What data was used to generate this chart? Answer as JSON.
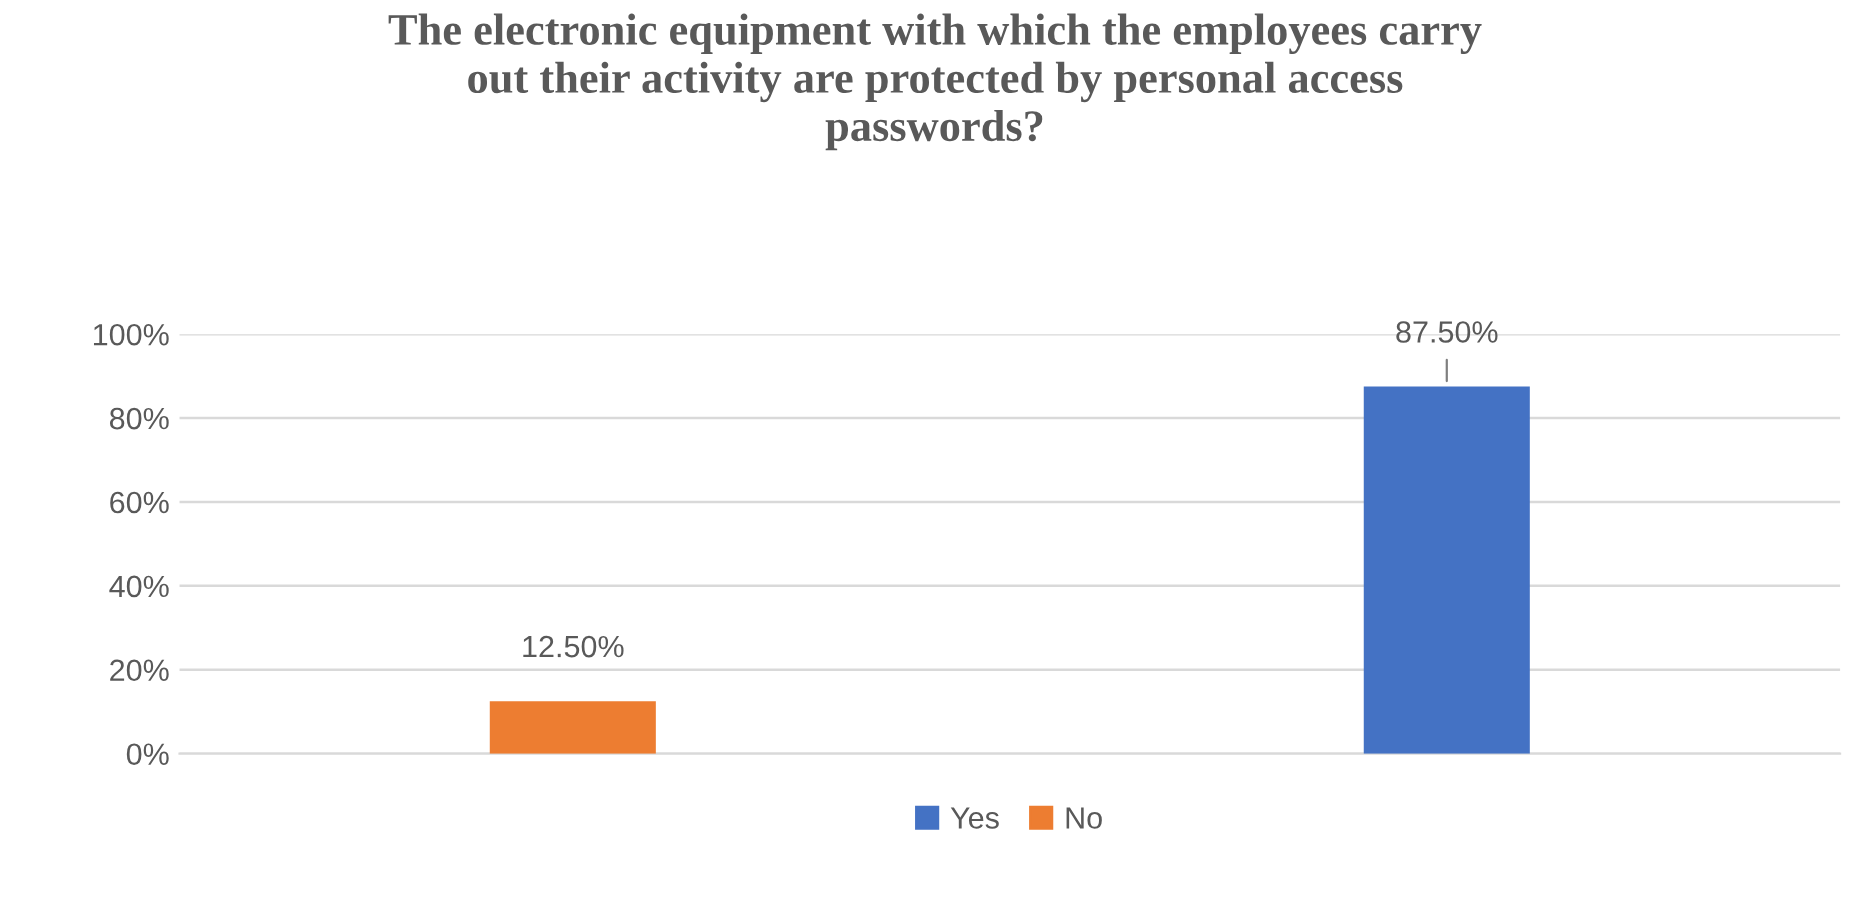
{
  "chart_data": {
    "type": "bar",
    "title": "The electronic equipment with which the employees carry\nout their activity are protected by personal access\npasswords?",
    "categories": [
      null,
      null
    ],
    "stacked": true,
    "series": [
      {
        "name": "Yes",
        "color": "#4472c4",
        "values": [
          null,
          87.5
        ],
        "value_labels": [
          null,
          "87.50%"
        ]
      },
      {
        "name": "No",
        "color": "#ed7d31",
        "values": [
          12.5,
          null
        ],
        "value_labels": [
          "12.50%",
          null
        ]
      }
    ],
    "ylim": [
      0,
      100
    ],
    "yticks": [
      {
        "value": 0,
        "label": "0%"
      },
      {
        "value": 20,
        "label": "20%"
      },
      {
        "value": 40,
        "label": "40%"
      },
      {
        "value": 60,
        "label": "60%"
      },
      {
        "value": 80,
        "label": "80%"
      },
      {
        "value": 100,
        "label": "100%"
      }
    ],
    "grid": "y",
    "legend": "bottom"
  }
}
